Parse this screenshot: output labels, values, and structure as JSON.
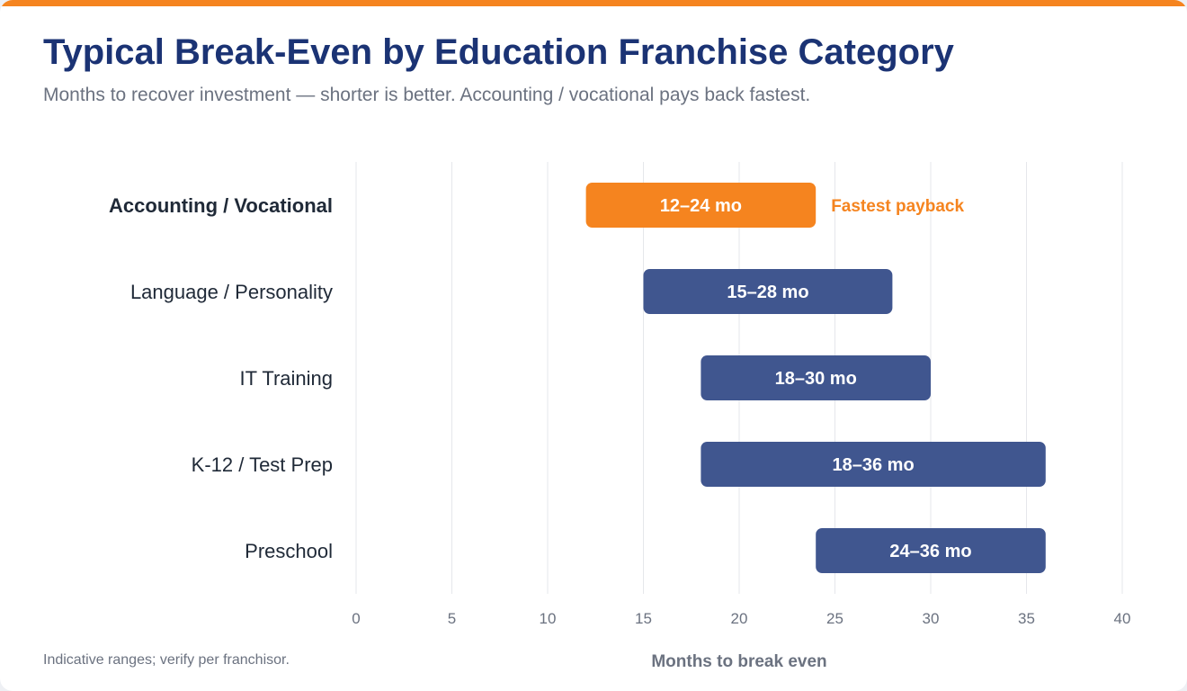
{
  "title": "Typical Break-Even by Education Franchise Category",
  "subtitle": "Months to recover investment — shorter is better. Accounting / vocational pays back fastest.",
  "footnote": "Indicative ranges; verify per franchisor.",
  "colors": {
    "accent": "#f5841f",
    "bar": "#40568f",
    "title": "#1b3374",
    "muted": "#6b7280",
    "grid": "#e5e7eb"
  },
  "chart_data": {
    "type": "bar",
    "orientation": "horizontal-range",
    "xlabel": "Months to break even",
    "ylabel": "",
    "xlim": [
      0,
      40
    ],
    "xticks": [
      0,
      5,
      10,
      15,
      20,
      25,
      30,
      35,
      40
    ],
    "grid": true,
    "categories": [
      "Accounting / Vocational",
      "Language / Personality",
      "IT Training",
      "K-12 / Test Prep",
      "Preschool"
    ],
    "ranges": [
      {
        "start": 12,
        "end": 24,
        "label": "12–24 mo",
        "highlight": true
      },
      {
        "start": 15,
        "end": 28,
        "label": "15–28 mo",
        "highlight": false
      },
      {
        "start": 18,
        "end": 30,
        "label": "18–30 mo",
        "highlight": false
      },
      {
        "start": 18,
        "end": 36,
        "label": "18–36 mo",
        "highlight": false
      },
      {
        "start": 24,
        "end": 36,
        "label": "24–36 mo",
        "highlight": false
      }
    ],
    "annotation": "Fastest payback"
  }
}
